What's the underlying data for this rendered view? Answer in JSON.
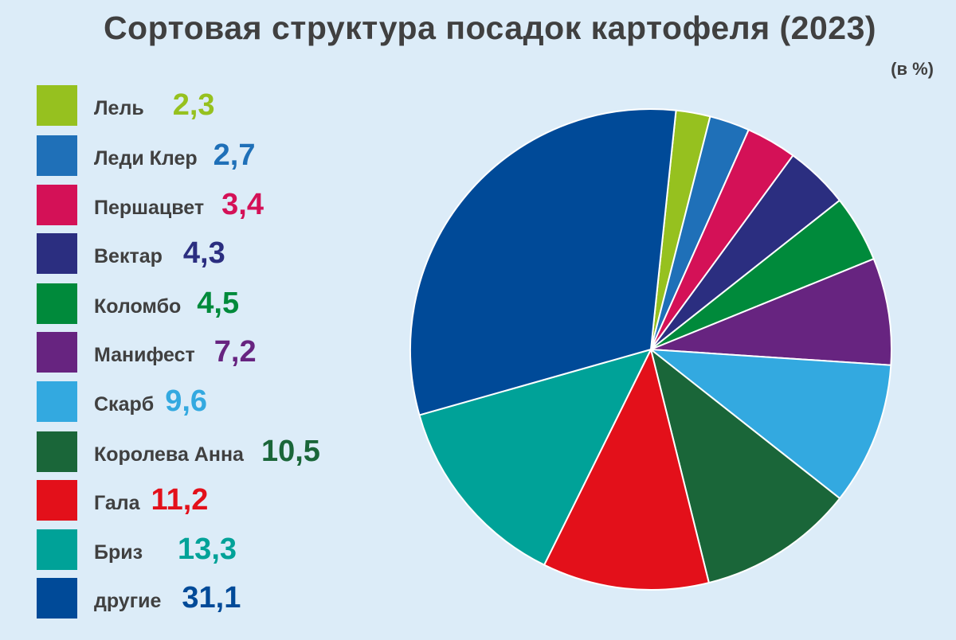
{
  "title": "Сортовая структура посадок картофеля (2023)",
  "unit": "(в %)",
  "chart_data": {
    "type": "pie",
    "title": "Сортовая структура посадок картофеля (2023)",
    "unit": "(в %)",
    "slices": [
      {
        "label": "Лель",
        "value": 2.3,
        "display": "2,3",
        "color": "#96c11f"
      },
      {
        "label": "Леди Клер",
        "value": 2.7,
        "display": "2,7",
        "color": "#1f70b8"
      },
      {
        "label": "Першацвет",
        "value": 3.4,
        "display": "3,4",
        "color": "#d41157"
      },
      {
        "label": "Вектар",
        "value": 4.3,
        "display": "4,3",
        "color": "#2b2e80"
      },
      {
        "label": "Коломбо",
        "value": 4.5,
        "display": "4,5",
        "color": "#008a3b"
      },
      {
        "label": "Манифест",
        "value": 7.2,
        "display": "7,2",
        "color": "#672480"
      },
      {
        "label": "Скарб",
        "value": 9.6,
        "display": "9,6",
        "color": "#33a9e0"
      },
      {
        "label": "Королева Анна",
        "value": 10.5,
        "display": "10,5",
        "color": "#1a6639"
      },
      {
        "label": "Гала",
        "value": 11.2,
        "display": "11,2",
        "color": "#e3101a"
      },
      {
        "label": "Бриз",
        "value": 13.3,
        "display": "13,3",
        "color": "#00a298"
      },
      {
        "label": "другие",
        "value": 31.1,
        "display": "31,1",
        "color": "#004a98"
      }
    ],
    "legend_position": "left"
  }
}
